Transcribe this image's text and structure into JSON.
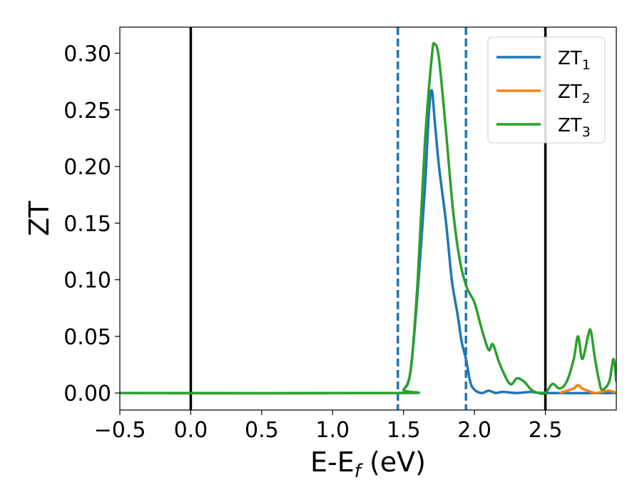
{
  "chart_data": {
    "type": "line",
    "xlabel": "E-E",
    "xlabel_sub": "f",
    "xlabel_unit": " (eV)",
    "ylabel": "ZT",
    "xlim": [
      -0.5,
      3.0
    ],
    "ylim": [
      -0.015,
      0.323
    ],
    "x_ticks": [
      -0.5,
      0.0,
      0.5,
      1.0,
      1.5,
      2.0,
      2.5
    ],
    "x_tick_labels": [
      "−0.5",
      "0.0",
      "0.5",
      "1.0",
      "1.5",
      "2.0",
      "2.5"
    ],
    "y_ticks": [
      0.0,
      0.05,
      0.1,
      0.15,
      0.2,
      0.25,
      0.3
    ],
    "y_tick_labels": [
      "0.00",
      "0.05",
      "0.10",
      "0.15",
      "0.20",
      "0.25",
      "0.30"
    ],
    "grid": false,
    "legend_placement": "top-right",
    "vlines": [
      {
        "x": 0.0,
        "style": "solid",
        "color": "#000000"
      },
      {
        "x": 2.5,
        "style": "solid",
        "color": "#000000"
      },
      {
        "x": 1.46,
        "style": "dashed",
        "color": "#1f77b4"
      },
      {
        "x": 1.94,
        "style": "dashed",
        "color": "#1f77b4"
      }
    ],
    "series": [
      {
        "name": "ZT",
        "name_sub": "1",
        "color": "#1f77b4",
        "points": [
          [
            -0.5,
            0
          ],
          [
            1.45,
            0
          ],
          [
            1.5,
            0.003
          ],
          [
            1.55,
            0.02
          ],
          [
            1.6,
            0.09
          ],
          [
            1.65,
            0.18
          ],
          [
            1.68,
            0.25
          ],
          [
            1.7,
            0.267
          ],
          [
            1.72,
            0.24
          ],
          [
            1.75,
            0.2
          ],
          [
            1.8,
            0.15
          ],
          [
            1.84,
            0.1
          ],
          [
            1.88,
            0.07
          ],
          [
            1.91,
            0.045
          ],
          [
            1.94,
            0.03
          ],
          [
            1.97,
            0.01
          ],
          [
            2.0,
            0.003
          ],
          [
            2.05,
            0.0
          ],
          [
            2.1,
            0.002
          ],
          [
            2.15,
            0.0
          ],
          [
            2.2,
            0.001
          ],
          [
            2.3,
            0.0
          ],
          [
            2.4,
            0.001
          ],
          [
            2.5,
            0.0
          ],
          [
            3.0,
            0.0
          ]
        ]
      },
      {
        "name": "ZT",
        "name_sub": "2",
        "color": "#ff7f0e",
        "points": [
          [
            2.6,
            0.0
          ],
          [
            2.65,
            0.002
          ],
          [
            2.7,
            0.004
          ],
          [
            2.73,
            0.007
          ],
          [
            2.76,
            0.004
          ],
          [
            2.8,
            0.002
          ],
          [
            2.85,
            0.0
          ],
          [
            2.9,
            0.001
          ],
          [
            2.95,
            0.002
          ],
          [
            3.0,
            0.0
          ]
        ]
      },
      {
        "name": "ZT",
        "name_sub": "3",
        "color": "#2ca02c",
        "points": [
          [
            -0.5,
            0
          ],
          [
            1.45,
            0
          ],
          [
            1.5,
            0.003
          ],
          [
            1.55,
            0.02
          ],
          [
            1.6,
            0.1
          ],
          [
            1.65,
            0.22
          ],
          [
            1.7,
            0.298
          ],
          [
            1.72,
            0.308
          ],
          [
            1.75,
            0.295
          ],
          [
            1.8,
            0.23
          ],
          [
            1.85,
            0.16
          ],
          [
            1.9,
            0.115
          ],
          [
            1.95,
            0.092
          ],
          [
            2.0,
            0.08
          ],
          [
            2.05,
            0.057
          ],
          [
            2.1,
            0.038
          ],
          [
            2.13,
            0.043
          ],
          [
            2.18,
            0.025
          ],
          [
            2.25,
            0.008
          ],
          [
            2.3,
            0.013
          ],
          [
            2.35,
            0.01
          ],
          [
            2.4,
            0.003
          ],
          [
            2.45,
            0.0
          ],
          [
            2.5,
            0.0
          ],
          [
            2.55,
            0.008
          ],
          [
            2.6,
            0.004
          ],
          [
            2.65,
            0.01
          ],
          [
            2.7,
            0.03
          ],
          [
            2.73,
            0.05
          ],
          [
            2.76,
            0.03
          ],
          [
            2.8,
            0.05
          ],
          [
            2.82,
            0.055
          ],
          [
            2.85,
            0.03
          ],
          [
            2.88,
            0.01
          ],
          [
            2.9,
            0.003
          ],
          [
            2.95,
            0.01
          ],
          [
            2.98,
            0.03
          ],
          [
            3.0,
            0.01
          ]
        ]
      }
    ]
  }
}
